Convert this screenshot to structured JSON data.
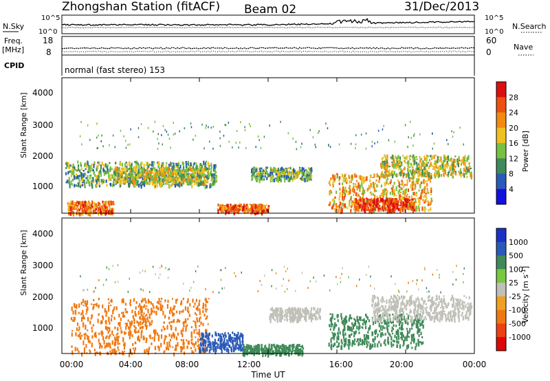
{
  "header": {
    "station": "Zhongshan Station (fitACF)",
    "beam": "Beam 02",
    "date": "31/Dec/2013"
  },
  "noise_panel": {
    "left_label": "N.Sky",
    "right_label": "N.Search",
    "left_ticks": [
      "10^5",
      "10^0"
    ],
    "right_ticks": [
      "10^5",
      "10^0"
    ]
  },
  "freq_panel": {
    "left_label": "Freq.",
    "left_unit": "[MHz]",
    "left_ticks": [
      "18",
      "8"
    ],
    "right_label": "Nave",
    "right_ticks": [
      "60",
      "0"
    ]
  },
  "cpid": {
    "label": "CPID",
    "text": "normal (fast stereo) 153"
  },
  "power_panel": {
    "ylabel": "Slant Range [km]",
    "yticks": [
      "4000",
      "3000",
      "2000",
      "1000"
    ],
    "colorbar_label": "Power [dB]",
    "colorbar_ticks": [
      "28",
      "24",
      "20",
      "16",
      "12",
      "8",
      "4"
    ],
    "colors": [
      "#1010e0",
      "#2a5ab8",
      "#3f8a58",
      "#78c040",
      "#f0c020",
      "#f08a10",
      "#ee5010",
      "#dd1010"
    ]
  },
  "velocity_panel": {
    "ylabel": "Slant Range [km]",
    "yticks": [
      "4000",
      "3000",
      "2000",
      "1000"
    ],
    "colorbar_label": "Velocity [m s-1]",
    "colorbar_ticks": [
      "1000",
      "500",
      "100",
      "25",
      "-25",
      "-100",
      "-500",
      "-1000"
    ],
    "colors": [
      "#1a32c8",
      "#2a5ab8",
      "#3f8a58",
      "#78c840",
      "#c0c0b8",
      "#f0a020",
      "#f07810",
      "#ee4010",
      "#dd0808"
    ]
  },
  "xaxis": {
    "ticks": [
      "00:00",
      "04:00",
      "08:00",
      "12:00",
      "16:00",
      "20:00",
      "00:00"
    ],
    "label": "Time UT"
  },
  "chart_data": {
    "type": "heatmap",
    "x_range_hours": [
      0,
      24
    ],
    "y_range_km": [
      180,
      4600
    ],
    "power_regions_dB": [
      {
        "t0": 0.2,
        "t1": 9.0,
        "r0": 1100,
        "r1": 1900,
        "value": 12
      },
      {
        "t0": 0.3,
        "t1": 3.0,
        "r0": 200,
        "r1": 600,
        "value": 24
      },
      {
        "t0": 3.0,
        "t1": 8.5,
        "r0": 1200,
        "r1": 1700,
        "value": 16
      },
      {
        "t0": 9.0,
        "t1": 12.0,
        "r0": 250,
        "r1": 500,
        "value": 26
      },
      {
        "t0": 11.0,
        "t1": 14.5,
        "r0": 1300,
        "r1": 1700,
        "value": 12
      },
      {
        "t0": 15.5,
        "t1": 21.5,
        "r0": 300,
        "r1": 1500,
        "value": 20
      },
      {
        "t0": 17.0,
        "t1": 20.5,
        "r0": 300,
        "r1": 700,
        "value": 28
      },
      {
        "t0": 18.5,
        "t1": 23.8,
        "r0": 1400,
        "r1": 2100,
        "value": 16
      }
    ],
    "velocity_regions_ms": [
      {
        "t0": 0.5,
        "t1": 8.5,
        "r0": 200,
        "r1": 2000,
        "value": -100
      },
      {
        "t0": 8.0,
        "t1": 10.5,
        "r0": 300,
        "r1": 900,
        "value": 500
      },
      {
        "t0": 10.5,
        "t1": 14.0,
        "r0": 200,
        "r1": 500,
        "value": 100
      },
      {
        "t0": 12.0,
        "t1": 15.0,
        "r0": 1300,
        "r1": 1700,
        "value": 0
      },
      {
        "t0": 15.5,
        "t1": 21.0,
        "r0": 400,
        "r1": 1500,
        "value": 100
      },
      {
        "t0": 18.0,
        "t1": 23.8,
        "r0": 1300,
        "r1": 2100,
        "value": 0
      }
    ]
  }
}
